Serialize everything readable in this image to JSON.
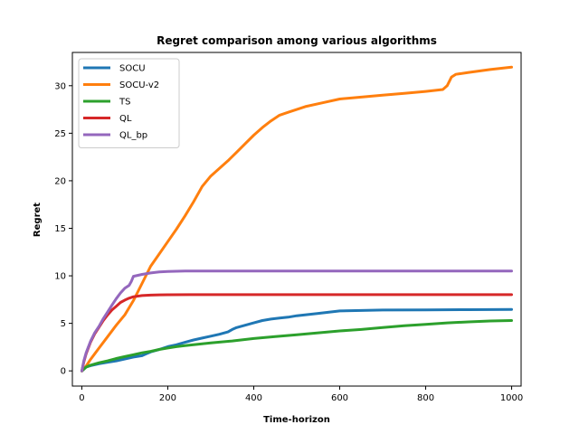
{
  "chart_data": {
    "type": "line",
    "title": "Regret comparison among various algorithms",
    "xlabel": "Time-horizon",
    "ylabel": "Regret",
    "xlim": [
      -22,
      1022
    ],
    "ylim": [
      -1.6,
      33.5
    ],
    "xticks": [
      0,
      200,
      400,
      600,
      800,
      1000
    ],
    "yticks": [
      0,
      5,
      10,
      15,
      20,
      25,
      30
    ],
    "grid": false,
    "legend": "top-left",
    "series": [
      {
        "name": "SOCU",
        "color": "#1f77b4",
        "x": [
          0,
          10,
          20,
          40,
          60,
          80,
          100,
          120,
          140,
          150,
          160,
          180,
          200,
          220,
          240,
          260,
          280,
          300,
          320,
          340,
          350,
          360,
          380,
          400,
          420,
          440,
          460,
          480,
          500,
          550,
          600,
          650,
          700,
          800,
          900,
          1000
        ],
        "y": [
          0,
          0.4,
          0.55,
          0.75,
          0.9,
          1.05,
          1.25,
          1.45,
          1.6,
          1.8,
          2.0,
          2.25,
          2.55,
          2.75,
          3.0,
          3.25,
          3.45,
          3.65,
          3.85,
          4.1,
          4.35,
          4.55,
          4.8,
          5.05,
          5.3,
          5.45,
          5.55,
          5.65,
          5.8,
          6.05,
          6.3,
          6.35,
          6.4,
          6.42,
          6.44,
          6.47
        ]
      },
      {
        "name": "SOCU-v2",
        "color": "#ff7f0e",
        "x": [
          0,
          10,
          20,
          30,
          40,
          60,
          80,
          100,
          120,
          140,
          160,
          180,
          200,
          220,
          240,
          260,
          280,
          300,
          320,
          340,
          360,
          380,
          400,
          420,
          440,
          460,
          480,
          500,
          520,
          560,
          600,
          650,
          700,
          750,
          800,
          840,
          850,
          860,
          870,
          900,
          950,
          1000
        ],
        "y": [
          0,
          0.5,
          1.2,
          1.8,
          2.4,
          3.6,
          4.8,
          5.9,
          7.4,
          9.2,
          11.0,
          12.3,
          13.6,
          14.9,
          16.3,
          17.8,
          19.4,
          20.5,
          21.3,
          22.1,
          23.0,
          23.9,
          24.8,
          25.6,
          26.3,
          26.9,
          27.2,
          27.5,
          27.8,
          28.2,
          28.6,
          28.8,
          29.0,
          29.2,
          29.4,
          29.6,
          30.0,
          30.9,
          31.2,
          31.4,
          31.7,
          31.95
        ]
      },
      {
        "name": "TS",
        "color": "#2ca02c",
        "x": [
          0,
          10,
          20,
          40,
          60,
          80,
          100,
          120,
          140,
          160,
          180,
          200,
          220,
          240,
          260,
          280,
          300,
          350,
          400,
          450,
          500,
          550,
          600,
          650,
          700,
          750,
          800,
          850,
          900,
          950,
          1000
        ],
        "y": [
          0,
          0.4,
          0.6,
          0.85,
          1.05,
          1.3,
          1.5,
          1.7,
          1.9,
          2.05,
          2.25,
          2.4,
          2.55,
          2.65,
          2.75,
          2.85,
          2.95,
          3.15,
          3.4,
          3.6,
          3.8,
          4.0,
          4.2,
          4.35,
          4.55,
          4.75,
          4.9,
          5.05,
          5.15,
          5.25,
          5.3
        ]
      },
      {
        "name": "QL",
        "color": "#d62728",
        "x": [
          0,
          5,
          10,
          20,
          30,
          40,
          50,
          60,
          70,
          80,
          90,
          100,
          110,
          120,
          140,
          160,
          180,
          200,
          250,
          300,
          400,
          600,
          800,
          1000
        ],
        "y": [
          0,
          1.0,
          1.8,
          3.0,
          3.9,
          4.6,
          5.3,
          5.9,
          6.4,
          6.8,
          7.2,
          7.45,
          7.65,
          7.8,
          7.92,
          7.97,
          8.0,
          8.01,
          8.02,
          8.02,
          8.02,
          8.02,
          8.02,
          8.02
        ]
      },
      {
        "name": "QL_bp",
        "color": "#9467bd",
        "x": [
          0,
          5,
          10,
          20,
          30,
          40,
          50,
          60,
          70,
          80,
          90,
          100,
          110,
          115,
          120,
          140,
          160,
          180,
          200,
          220,
          240,
          300,
          400,
          600,
          800,
          1000
        ],
        "y": [
          0,
          1.1,
          1.9,
          3.1,
          4.0,
          4.7,
          5.5,
          6.2,
          6.9,
          7.6,
          8.2,
          8.7,
          9.0,
          9.4,
          9.95,
          10.15,
          10.3,
          10.4,
          10.45,
          10.48,
          10.5,
          10.5,
          10.5,
          10.5,
          10.5,
          10.5
        ]
      }
    ]
  }
}
